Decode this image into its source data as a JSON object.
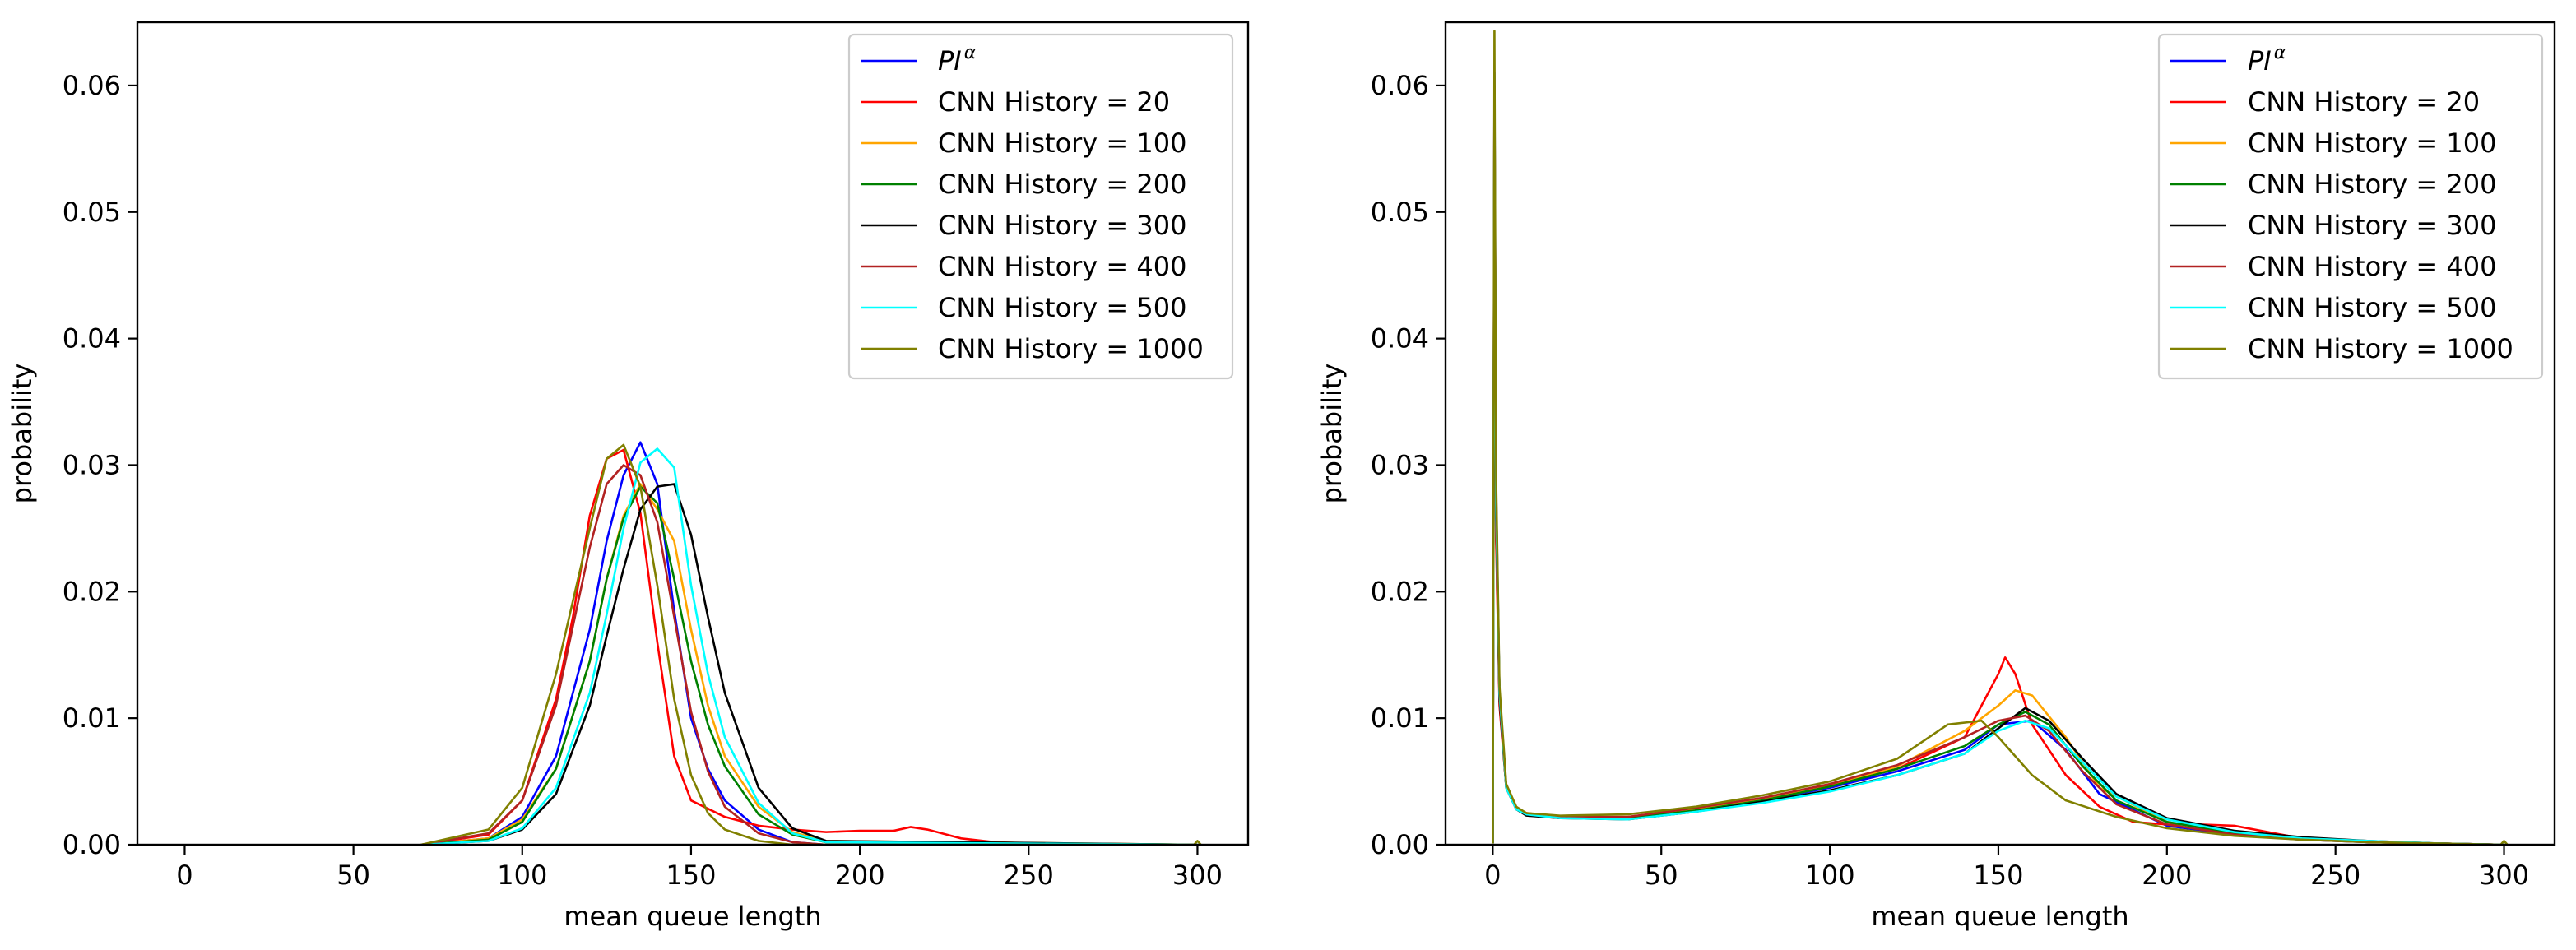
{
  "chart_data": [
    {
      "type": "line",
      "xlabel": "mean queue length",
      "ylabel": "probability",
      "xlim": [
        -14,
        315
      ],
      "ylim": [
        0,
        0.065
      ],
      "xticks": [
        0,
        50,
        100,
        150,
        200,
        250,
        300
      ],
      "yticks": [
        0.0,
        0.01,
        0.02,
        0.03,
        0.04,
        0.05,
        0.06
      ],
      "xtick_labels": [
        "0",
        "50",
        "100",
        "150",
        "200",
        "250",
        "300"
      ],
      "ytick_labels": [
        "0.00",
        "0.01",
        "0.02",
        "0.03",
        "0.04",
        "0.05",
        "0.06"
      ],
      "grid": false,
      "legend_position": "upper right",
      "series": [
        {
          "name": "PI",
          "name_sup": "α",
          "name_style": "italic",
          "color": "#0000ff",
          "x": [
            70,
            90,
            100,
            110,
            120,
            125,
            130,
            135,
            140,
            145,
            150,
            155,
            160,
            170,
            180,
            190,
            300
          ],
          "y": [
            0,
            0.0005,
            0.0022,
            0.007,
            0.017,
            0.024,
            0.0292,
            0.0318,
            0.0285,
            0.0185,
            0.01,
            0.006,
            0.0035,
            0.0012,
            0.0002,
            0,
            0
          ]
        },
        {
          "name": "CNN History = 20",
          "color": "#ff0000",
          "x": [
            70,
            90,
            100,
            110,
            115,
            120,
            125,
            130,
            135,
            140,
            145,
            150,
            160,
            170,
            180,
            190,
            200,
            210,
            215,
            220,
            230,
            240,
            250,
            260,
            300
          ],
          "y": [
            0,
            0.0008,
            0.0035,
            0.0115,
            0.018,
            0.026,
            0.0305,
            0.0312,
            0.0262,
            0.016,
            0.007,
            0.0035,
            0.0022,
            0.0015,
            0.0012,
            0.001,
            0.0011,
            0.0011,
            0.0014,
            0.0012,
            0.0005,
            0.0002,
            0.0001,
            0,
            0
          ]
        },
        {
          "name": "CNN History = 100",
          "color": "#ffa500",
          "x": [
            70,
            90,
            100,
            110,
            120,
            125,
            130,
            135,
            140,
            145,
            150,
            155,
            160,
            170,
            180,
            190,
            300
          ],
          "y": [
            0,
            0.0005,
            0.002,
            0.006,
            0.0145,
            0.021,
            0.026,
            0.0285,
            0.0265,
            0.024,
            0.017,
            0.011,
            0.007,
            0.003,
            0.001,
            0.0003,
            0
          ]
        },
        {
          "name": "CNN History = 200",
          "color": "#008000",
          "x": [
            70,
            90,
            100,
            110,
            120,
            125,
            130,
            135,
            140,
            145,
            150,
            155,
            160,
            170,
            180,
            190,
            300
          ],
          "y": [
            0,
            0.0004,
            0.0018,
            0.006,
            0.0145,
            0.021,
            0.0258,
            0.0283,
            0.027,
            0.021,
            0.0145,
            0.0095,
            0.0062,
            0.0024,
            0.0008,
            0.0002,
            0
          ]
        },
        {
          "name": "CNN History = 300",
          "color": "#000000",
          "x": [
            70,
            90,
            100,
            110,
            120,
            125,
            130,
            135,
            140,
            145,
            150,
            155,
            160,
            170,
            180,
            190,
            300
          ],
          "y": [
            0,
            0.0003,
            0.0012,
            0.004,
            0.011,
            0.0165,
            0.0218,
            0.0265,
            0.0283,
            0.0285,
            0.0245,
            0.018,
            0.012,
            0.0045,
            0.0013,
            0.0003,
            0
          ]
        },
        {
          "name": "CNN History = 400",
          "color": "#b22222",
          "x": [
            70,
            90,
            100,
            110,
            120,
            125,
            130,
            135,
            140,
            145,
            150,
            155,
            160,
            170,
            180,
            190,
            300
          ],
          "y": [
            0,
            0.0009,
            0.0035,
            0.011,
            0.0235,
            0.0285,
            0.03,
            0.0292,
            0.0255,
            0.018,
            0.0105,
            0.0058,
            0.003,
            0.0009,
            0.0002,
            0,
            0
          ]
        },
        {
          "name": "CNN History = 500",
          "color": "#00ffff",
          "x": [
            70,
            90,
            100,
            110,
            120,
            125,
            130,
            135,
            140,
            145,
            150,
            155,
            160,
            170,
            180,
            190,
            300
          ],
          "y": [
            0,
            0.0003,
            0.0013,
            0.0045,
            0.012,
            0.0182,
            0.025,
            0.0302,
            0.0313,
            0.0298,
            0.0205,
            0.0135,
            0.0085,
            0.0033,
            0.0009,
            0.0002,
            0
          ]
        },
        {
          "name": "CNN History = 1000",
          "color": "#808000",
          "x": [
            70,
            90,
            100,
            110,
            120,
            125,
            130,
            135,
            140,
            145,
            150,
            155,
            160,
            170,
            180,
            299,
            300,
            301
          ],
          "y": [
            0,
            0.0012,
            0.0045,
            0.0135,
            0.025,
            0.0305,
            0.0316,
            0.0283,
            0.0205,
            0.0115,
            0.0055,
            0.0025,
            0.0012,
            0.0003,
            0,
            0,
            0.0003,
            0
          ]
        }
      ]
    },
    {
      "type": "line",
      "xlabel": "mean queue length",
      "ylabel": "probability",
      "xlim": [
        -14,
        315
      ],
      "ylim": [
        0,
        0.065
      ],
      "xticks": [
        0,
        50,
        100,
        150,
        200,
        250,
        300
      ],
      "yticks": [
        0.0,
        0.01,
        0.02,
        0.03,
        0.04,
        0.05,
        0.06
      ],
      "xtick_labels": [
        "0",
        "50",
        "100",
        "150",
        "200",
        "250",
        "300"
      ],
      "ytick_labels": [
        "0.00",
        "0.01",
        "0.02",
        "0.03",
        "0.04",
        "0.05",
        "0.06"
      ],
      "grid": false,
      "legend_position": "upper right",
      "series": [
        {
          "name": "PI",
          "name_sup": "α",
          "name_style": "italic",
          "color": "#0000ff",
          "x": [
            0,
            0.5,
            1,
            2,
            4,
            7,
            10,
            20,
            40,
            60,
            80,
            100,
            120,
            140,
            150,
            160,
            170,
            180,
            200,
            220,
            240,
            260,
            280,
            300
          ],
          "y": [
            0.0001,
            0.061,
            0.028,
            0.012,
            0.0045,
            0.0028,
            0.0024,
            0.0021,
            0.0021,
            0.0027,
            0.0035,
            0.0045,
            0.0058,
            0.0075,
            0.0095,
            0.0098,
            0.0075,
            0.004,
            0.0015,
            0.0008,
            0.0004,
            0.0002,
            0.0001,
            0
          ]
        },
        {
          "name": "CNN History = 20",
          "color": "#ff0000",
          "x": [
            0,
            0.5,
            1,
            2,
            4,
            7,
            10,
            20,
            40,
            60,
            80,
            100,
            120,
            140,
            145,
            150,
            152,
            155,
            160,
            170,
            180,
            190,
            200,
            210,
            220,
            230,
            240,
            260,
            280,
            300
          ],
          "y": [
            0.0001,
            0.052,
            0.024,
            0.011,
            0.0045,
            0.0028,
            0.0024,
            0.0021,
            0.0021,
            0.0028,
            0.0036,
            0.0047,
            0.006,
            0.0085,
            0.011,
            0.0135,
            0.0148,
            0.0135,
            0.0095,
            0.0055,
            0.003,
            0.0018,
            0.0016,
            0.0016,
            0.0015,
            0.001,
            0.0005,
            0.0002,
            0.0001,
            0
          ]
        },
        {
          "name": "CNN History = 100",
          "color": "#ffa500",
          "x": [
            0,
            0.5,
            1,
            2,
            4,
            7,
            10,
            20,
            40,
            60,
            80,
            100,
            120,
            140,
            150,
            155,
            160,
            170,
            180,
            200,
            220,
            240,
            260,
            280,
            300
          ],
          "y": [
            0.0001,
            0.06,
            0.027,
            0.012,
            0.0045,
            0.0029,
            0.0025,
            0.0022,
            0.0022,
            0.0028,
            0.0036,
            0.0046,
            0.0062,
            0.009,
            0.011,
            0.0122,
            0.0118,
            0.0085,
            0.0045,
            0.0018,
            0.0009,
            0.0005,
            0.0002,
            0.0001,
            0
          ]
        },
        {
          "name": "CNN History = 200",
          "color": "#008000",
          "x": [
            0,
            0.5,
            1,
            2,
            4,
            7,
            10,
            20,
            40,
            60,
            80,
            100,
            120,
            140,
            150,
            158,
            165,
            175,
            185,
            200,
            220,
            240,
            260,
            280,
            300
          ],
          "y": [
            0.0001,
            0.059,
            0.027,
            0.012,
            0.0046,
            0.0028,
            0.0024,
            0.0022,
            0.0021,
            0.0027,
            0.0035,
            0.0046,
            0.006,
            0.0078,
            0.0095,
            0.0105,
            0.0095,
            0.0062,
            0.0035,
            0.0018,
            0.0009,
            0.0005,
            0.0002,
            0.0001,
            0
          ]
        },
        {
          "name": "CNN History = 300",
          "color": "#000000",
          "x": [
            0,
            0.5,
            1,
            2,
            4,
            7,
            10,
            20,
            40,
            60,
            80,
            100,
            120,
            140,
            150,
            158,
            165,
            175,
            185,
            200,
            220,
            240,
            260,
            280,
            300
          ],
          "y": [
            0.0001,
            0.056,
            0.026,
            0.0115,
            0.0045,
            0.0028,
            0.0023,
            0.0021,
            0.002,
            0.0026,
            0.0034,
            0.0043,
            0.0055,
            0.0072,
            0.0092,
            0.0108,
            0.0098,
            0.0068,
            0.004,
            0.0021,
            0.0011,
            0.0006,
            0.0003,
            0.0001,
            0
          ]
        },
        {
          "name": "CNN History = 400",
          "color": "#b22222",
          "x": [
            0,
            0.5,
            1,
            2,
            4,
            7,
            10,
            20,
            40,
            60,
            80,
            100,
            120,
            140,
            150,
            158,
            165,
            175,
            185,
            200,
            220,
            240,
            260,
            280,
            300
          ],
          "y": [
            0.0001,
            0.06,
            0.027,
            0.012,
            0.0046,
            0.0029,
            0.0025,
            0.0022,
            0.0022,
            0.0029,
            0.0037,
            0.0048,
            0.0063,
            0.0085,
            0.0098,
            0.0102,
            0.009,
            0.0058,
            0.0032,
            0.0016,
            0.0008,
            0.0004,
            0.0002,
            0.0001,
            0
          ]
        },
        {
          "name": "CNN History = 500",
          "color": "#00ffff",
          "x": [
            0,
            0.5,
            1,
            2,
            4,
            7,
            10,
            20,
            40,
            60,
            80,
            100,
            120,
            140,
            150,
            158,
            165,
            175,
            185,
            200,
            220,
            240,
            260,
            280,
            300
          ],
          "y": [
            0.0001,
            0.058,
            0.027,
            0.012,
            0.0045,
            0.0028,
            0.0024,
            0.0021,
            0.002,
            0.0026,
            0.0033,
            0.0042,
            0.0055,
            0.0072,
            0.009,
            0.0098,
            0.0092,
            0.0065,
            0.0038,
            0.002,
            0.001,
            0.0005,
            0.0003,
            0.0001,
            0
          ]
        },
        {
          "name": "CNN History = 1000",
          "color": "#808000",
          "x": [
            0,
            0.5,
            1,
            2,
            4,
            7,
            10,
            20,
            40,
            60,
            80,
            100,
            120,
            135,
            145,
            150,
            160,
            170,
            185,
            200,
            220,
            240,
            260,
            280,
            299,
            300,
            301
          ],
          "y": [
            0.0001,
            0.0643,
            0.029,
            0.0125,
            0.0048,
            0.003,
            0.0025,
            0.0023,
            0.0024,
            0.003,
            0.0039,
            0.005,
            0.0068,
            0.0095,
            0.0098,
            0.0085,
            0.0055,
            0.0035,
            0.0022,
            0.0013,
            0.0007,
            0.0004,
            0.0002,
            0.0001,
            0,
            0.0003,
            0
          ]
        }
      ]
    }
  ]
}
